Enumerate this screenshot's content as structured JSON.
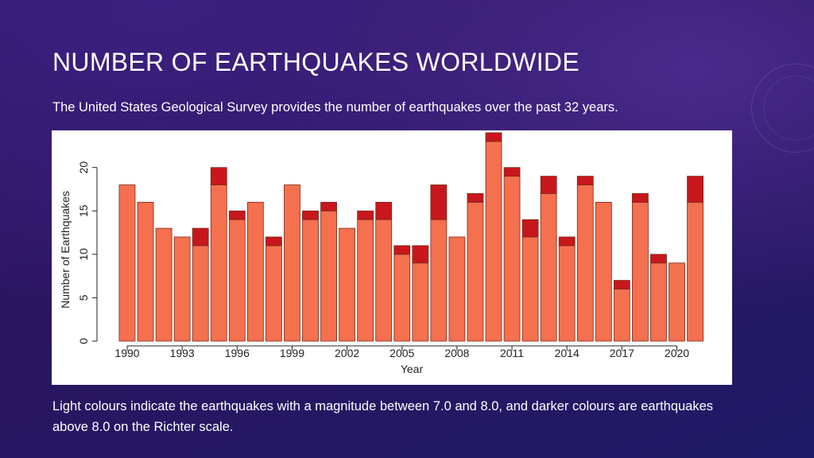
{
  "slide": {
    "title": "NUMBER OF EARTHQUAKES WORLDWIDE",
    "subtitle": "The United States Geological Survey provides the number of earthquakes over the past 32 years.",
    "caption": "Light colours indicate the earthquakes with a magnitude between 7.0 and 8.0, and darker colours are earthquakes above 8.0 on the Richter scale."
  },
  "colors": {
    "light": "#f4704f",
    "dark": "#c8171c",
    "bar_edge": "#7a2a1a",
    "axis": "#222222"
  },
  "chart_data": {
    "type": "bar",
    "stacked": true,
    "xlabel": "Year",
    "ylabel": "Number of Earthquakes",
    "ylim": [
      0,
      24
    ],
    "yticks": [
      0,
      5,
      10,
      15,
      20
    ],
    "xtick_labels": [
      "1990",
      "1993",
      "1996",
      "1999",
      "2002",
      "2005",
      "2008",
      "2011",
      "2014",
      "2017",
      "2020"
    ],
    "categories": [
      "1990",
      "1991",
      "1992",
      "1993",
      "1994",
      "1995",
      "1996",
      "1997",
      "1998",
      "1999",
      "2000",
      "2001",
      "2002",
      "2003",
      "2004",
      "2005",
      "2006",
      "2007",
      "2008",
      "2009",
      "2010",
      "2011",
      "2012",
      "2013",
      "2014",
      "2015",
      "2016",
      "2017",
      "2018",
      "2019",
      "2020",
      "2021"
    ],
    "series": [
      {
        "values": [
          18,
          16,
          13,
          12,
          11,
          18,
          14,
          16,
          11,
          18,
          14,
          15,
          13,
          14,
          14,
          10,
          9,
          14,
          12,
          16,
          23,
          19,
          12,
          17,
          11,
          18,
          16,
          6,
          16,
          9,
          9,
          16
        ]
      },
      {
        "values": [
          0,
          0,
          0,
          0,
          2,
          2,
          1,
          0,
          1,
          0,
          1,
          1,
          0,
          1,
          2,
          1,
          2,
          4,
          0,
          1,
          1,
          1,
          2,
          2,
          1,
          1,
          0,
          1,
          1,
          1,
          0,
          3
        ]
      }
    ]
  }
}
